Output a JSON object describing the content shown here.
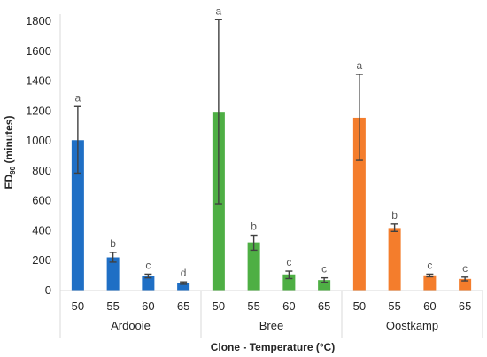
{
  "chart_data": {
    "type": "bar",
    "xlabel": "Clone - Temperature (°C)",
    "ylabel_main": "ED",
    "ylabel_sub": "90",
    "ylabel_suffix": " (minutes)",
    "ylim": [
      0,
      1800
    ],
    "yticks": [
      0,
      200,
      400,
      600,
      800,
      1000,
      1200,
      1400,
      1600,
      1800
    ],
    "groups": [
      {
        "name": "Ardooie",
        "color": "#1F6FC5",
        "categories": [
          "50",
          "55",
          "60",
          "65"
        ],
        "values": [
          1005,
          222,
          97,
          50
        ],
        "err_low": [
          785,
          190,
          85,
          42
        ],
        "err_high": [
          1230,
          255,
          110,
          58
        ],
        "letters": [
          "a",
          "b",
          "c",
          "d"
        ]
      },
      {
        "name": "Bree",
        "color": "#4EAF44",
        "categories": [
          "50",
          "55",
          "60",
          "65"
        ],
        "values": [
          1195,
          322,
          108,
          70
        ],
        "err_low": [
          580,
          270,
          80,
          55
        ],
        "err_high": [
          1810,
          370,
          130,
          85
        ],
        "letters": [
          "a",
          "b",
          "c",
          "c"
        ]
      },
      {
        "name": "Oostkamp",
        "color": "#F47D2C",
        "categories": [
          "50",
          "55",
          "60",
          "65"
        ],
        "values": [
          1155,
          418,
          102,
          78
        ],
        "err_low": [
          870,
          395,
          92,
          65
        ],
        "err_high": [
          1445,
          445,
          110,
          90
        ],
        "letters": [
          "a",
          "b",
          "c",
          "c"
        ]
      }
    ]
  }
}
